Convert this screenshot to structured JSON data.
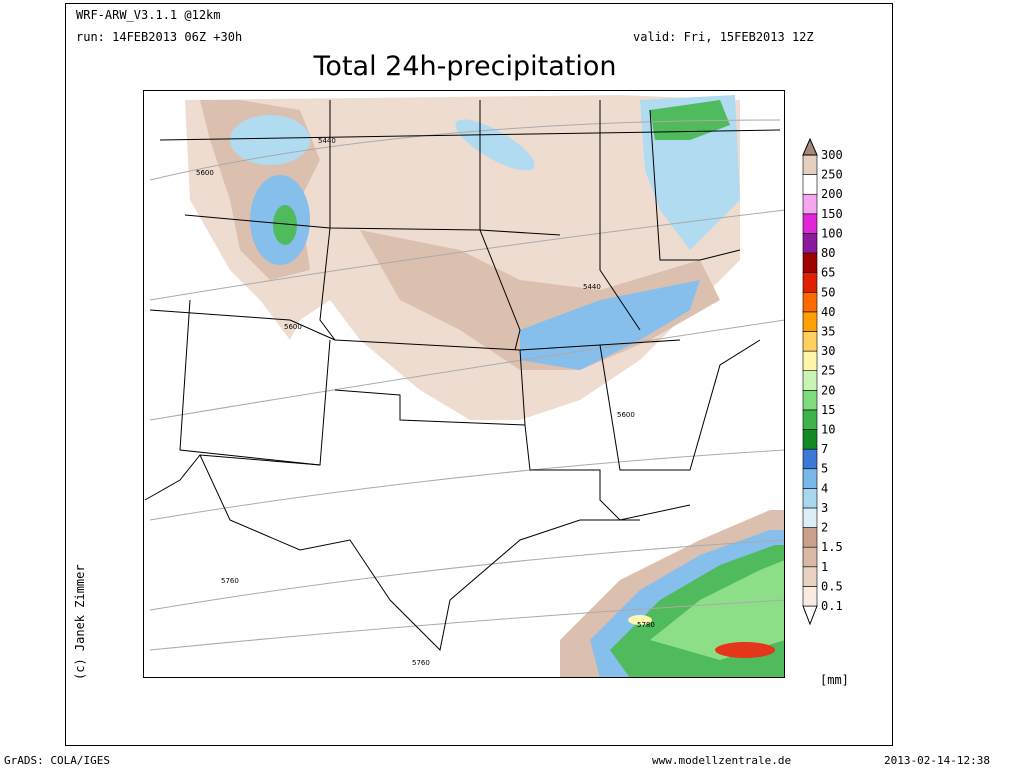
{
  "header": {
    "model": "WRF-ARW_V3.1.1 @12km",
    "run": "run: 14FEB2013 06Z +30h",
    "valid": "valid: Fri, 15FEB2013 12Z",
    "title": "Total 24h-precipitation"
  },
  "colorbar": {
    "levels": [
      0.1,
      0.5,
      1,
      1.5,
      2,
      3,
      4,
      5,
      7,
      10,
      15,
      20,
      25,
      30,
      35,
      40,
      50,
      65,
      80,
      100,
      150,
      200,
      250,
      300
    ],
    "colors": [
      "#ffffff",
      "#f7ebe2",
      "#ead2c2",
      "#d9b9a6",
      "#c8a08c",
      "#dceef8",
      "#a8d7ef",
      "#79b7ea",
      "#3c78d8",
      "#128a22",
      "#3cb44a",
      "#7fdc7a",
      "#c8f5b4",
      "#fff5a8",
      "#ffd060",
      "#ffa000",
      "#ff6a00",
      "#e02000",
      "#a00000",
      "#8c1a9c",
      "#e026d6",
      "#f5a6ee",
      "#ffffff",
      "#e4cfc0",
      "#a68878"
    ],
    "unit": "[mm]"
  },
  "contours": {
    "c1": "5440",
    "c2": "5440",
    "c3": "5600",
    "c4": "5600",
    "c5": "5600",
    "c6": "5760",
    "c7": "5760",
    "c8": "5780"
  },
  "footer": {
    "credit": "(c) Janek Zimmer",
    "software": "GrADS: COLA/IGES",
    "site": "www.modellzentrale.de",
    "stamp": "2013-02-14-12:38"
  }
}
